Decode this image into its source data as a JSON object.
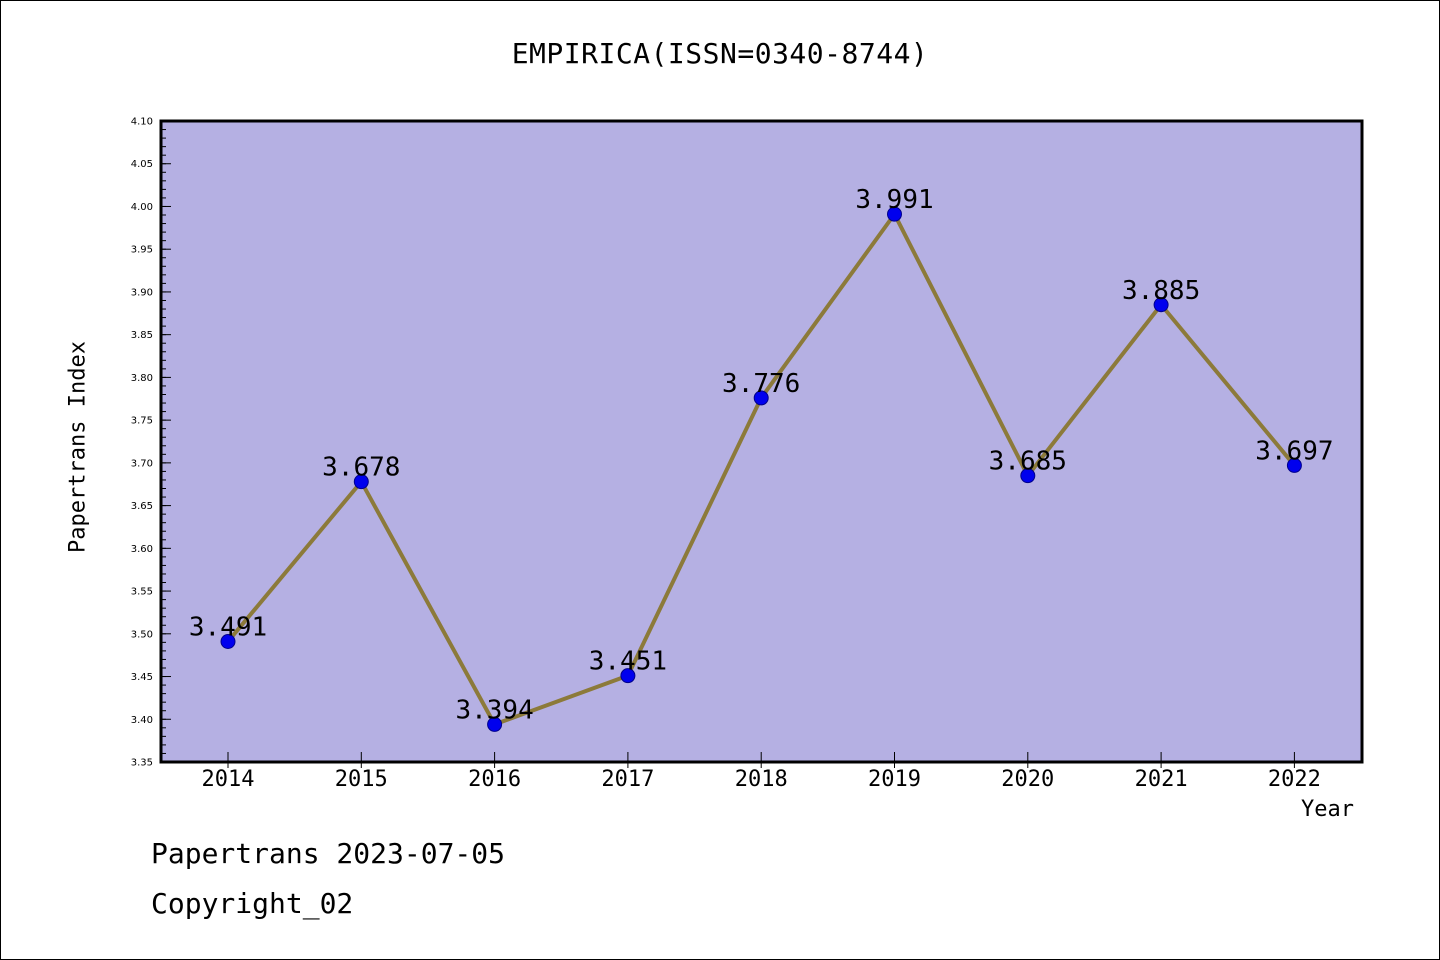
{
  "chart_data": {
    "type": "line",
    "title": "EMPIRICA(ISSN=0340-8744)",
    "xlabel": "Year",
    "ylabel": "Papertrans Index",
    "categories": [
      "2014",
      "2015",
      "2016",
      "2017",
      "2018",
      "2019",
      "2020",
      "2021",
      "2022"
    ],
    "series": [
      {
        "values": [
          3.491,
          3.678,
          3.394,
          3.451,
          3.776,
          3.991,
          3.685,
          3.885,
          3.697
        ],
        "labels": [
          "3.491",
          "3.678",
          "3.394",
          "3.451",
          "3.776",
          "3.991",
          "3.685",
          "3.885",
          "3.697"
        ]
      }
    ],
    "ylim": [
      3.35,
      4.1
    ],
    "yticks": [
      "3.35",
      "3.40",
      "3.45",
      "3.50",
      "3.55",
      "3.60",
      "3.65",
      "3.70",
      "3.75",
      "3.80",
      "3.85",
      "3.90",
      "3.95",
      "4.00",
      "4.05",
      "4.10"
    ],
    "grid": false,
    "colors": {
      "plot_background": "#b5b0e3",
      "line": "#8c7a3a",
      "marker_fill": "#0000ee",
      "marker_edge": "#00008b"
    }
  },
  "footer": {
    "date_text": "Papertrans 2023-07-05",
    "copyright_text": "Copyright_02"
  }
}
